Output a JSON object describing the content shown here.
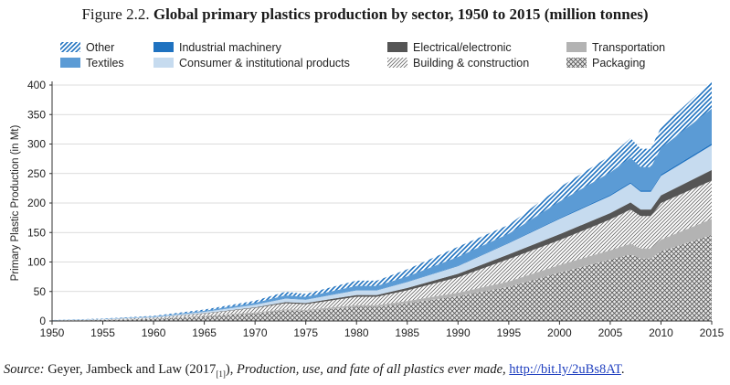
{
  "title": {
    "figure_label": "Figure 2.2.",
    "main": "Global primary plastics production by sector, 1950 to 2015 (million tonnes)"
  },
  "source": {
    "label": "Source:",
    "authors": "Geyer, Jambeck and Law (2017",
    "ref": "[1]",
    "after_ref": "),",
    "work": "Production, use, and fate of all plastics ever made,",
    "link": "http://bit.ly/2uBs8AT",
    "end": "."
  },
  "chart_data": {
    "type": "area",
    "stacked": true,
    "title": "",
    "xlabel": "",
    "ylabel": "Primary Plastic Production (in Mt)",
    "xlim": [
      1950,
      2015
    ],
    "ylim": [
      0,
      400
    ],
    "x_ticks": [
      1950,
      1955,
      1960,
      1965,
      1970,
      1975,
      1980,
      1985,
      1990,
      1995,
      2000,
      2005,
      2010,
      2015
    ],
    "y_ticks": [
      0,
      50,
      100,
      150,
      200,
      250,
      300,
      350,
      400
    ],
    "grid": true,
    "legend_placement": "top",
    "x": [
      1950,
      1955,
      1960,
      1965,
      1970,
      1973,
      1975,
      1980,
      1982,
      1985,
      1990,
      1995,
      2000,
      2005,
      2007,
      2008,
      2009,
      2010,
      2015
    ],
    "series": [
      {
        "name": "Packaging",
        "pattern": "crosshatch",
        "color": "#9a9a9a",
        "values": [
          0.5,
          1.5,
          3.5,
          8,
          13,
          18,
          17,
          24,
          24,
          30,
          42,
          58,
          82,
          104,
          113,
          106,
          106,
          118,
          146
        ]
      },
      {
        "name": "Transportation",
        "pattern": "solid",
        "color": "#b3b3b3",
        "values": [
          0.1,
          0.2,
          0.3,
          0.6,
          1.5,
          2,
          2,
          3,
          3,
          4,
          6,
          9,
          13,
          16,
          18,
          17,
          17,
          20,
          27
        ]
      },
      {
        "name": "Building & construction",
        "pattern": "diagonal",
        "color": "#9a9a9a",
        "values": [
          0.3,
          0.8,
          1.8,
          4,
          7.5,
          10,
          9.5,
          14,
          14,
          18,
          26,
          38,
          42,
          52,
          58,
          55,
          55,
          62,
          65
        ]
      },
      {
        "name": "Electrical/electronic",
        "pattern": "solid",
        "color": "#555555",
        "values": [
          0.05,
          0.1,
          0.2,
          0.5,
          1,
          2,
          2,
          3,
          3,
          4,
          6,
          8,
          10,
          11,
          12,
          11,
          11,
          13,
          18
        ]
      },
      {
        "name": "Consumer & institutional products",
        "pattern": "solid",
        "color": "#c6dbef",
        "values": [
          0.2,
          0.5,
          1,
          2.5,
          4.5,
          6,
          5.5,
          8,
          8,
          10,
          13,
          19,
          26,
          29,
          32,
          30,
          30,
          33,
          42
        ]
      },
      {
        "name": "Industrial machinery",
        "pattern": "solid",
        "color": "#1f72c0",
        "values": [
          0.02,
          0.05,
          0.1,
          0.2,
          0.3,
          0.5,
          0.4,
          0.5,
          0.5,
          0.6,
          0.8,
          1,
          1.5,
          2,
          2,
          2,
          2,
          2.5,
          3
        ]
      },
      {
        "name": "Textiles",
        "pattern": "solid",
        "color": "#5b9bd5",
        "values": [
          0.1,
          0.4,
          0.8,
          1.5,
          3,
          5,
          4.5,
          7,
          7,
          9,
          15,
          15,
          28,
          38,
          42,
          40,
          40,
          45,
          59
        ]
      },
      {
        "name": "Other",
        "pattern": "stripe",
        "color": "#1f72c0",
        "values": [
          0.2,
          0.5,
          1,
          2,
          3.5,
          6,
          5,
          9,
          9,
          12,
          17,
          15,
          24,
          28,
          33,
          31,
          31,
          35,
          47
        ]
      }
    ]
  }
}
